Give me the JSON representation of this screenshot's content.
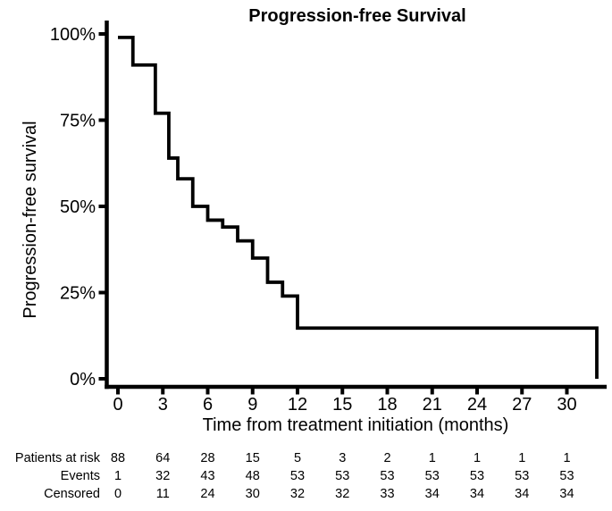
{
  "chart_data": {
    "type": "line",
    "subtype": "kaplan_meier_step",
    "title": "Progression-free Survival",
    "xlabel": "Time from treatment initiation (months)",
    "ylabel": "Progression-free survival",
    "xlim": [
      0,
      32.6
    ],
    "ylim": [
      0,
      100
    ],
    "grid": false,
    "legend": false,
    "x_ticks": [
      0,
      3,
      6,
      9,
      12,
      15,
      18,
      21,
      24,
      27,
      30
    ],
    "y_ticks": [
      {
        "value": 0,
        "label": "0%"
      },
      {
        "value": 25,
        "label": "25%"
      },
      {
        "value": 50,
        "label": "50%"
      },
      {
        "value": 75,
        "label": "75%"
      },
      {
        "value": 100,
        "label": "100%"
      }
    ],
    "series": [
      {
        "name": "Progression-free survival",
        "color": "#000000",
        "steps": [
          {
            "t": 0,
            "s": 99
          },
          {
            "t": 1,
            "s": 91
          },
          {
            "t": 2.5,
            "s": 77
          },
          {
            "t": 3.4,
            "s": 64
          },
          {
            "t": 4,
            "s": 58
          },
          {
            "t": 5,
            "s": 50
          },
          {
            "t": 6,
            "s": 46
          },
          {
            "t": 7,
            "s": 44
          },
          {
            "t": 8,
            "s": 40
          },
          {
            "t": 9,
            "s": 35
          },
          {
            "t": 10,
            "s": 28
          },
          {
            "t": 11,
            "s": 24
          },
          {
            "t": 12,
            "s": 14.7
          },
          {
            "t": 32,
            "s": 0
          }
        ]
      }
    ]
  },
  "risk_table": {
    "time_points": [
      0,
      3,
      6,
      9,
      12,
      15,
      18,
      21,
      24,
      27,
      30
    ],
    "rows": [
      {
        "label": "Patients at risk",
        "values": [
          88,
          64,
          28,
          15,
          5,
          3,
          2,
          1,
          1,
          1,
          1
        ]
      },
      {
        "label": "Events",
        "values": [
          1,
          32,
          43,
          48,
          53,
          53,
          53,
          53,
          53,
          53,
          53
        ]
      },
      {
        "label": "Censored",
        "values": [
          0,
          11,
          24,
          30,
          32,
          32,
          33,
          34,
          34,
          34,
          34
        ]
      }
    ]
  },
  "colors": {
    "line": "#000000",
    "text": "#000000",
    "background": "#ffffff"
  }
}
